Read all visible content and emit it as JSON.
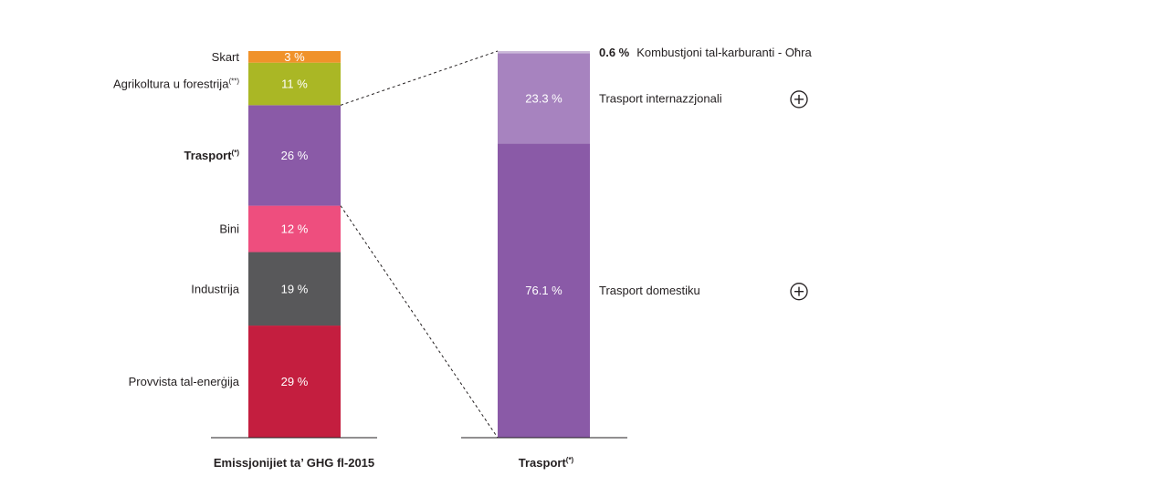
{
  "chart_data": [
    {
      "type": "bar",
      "stacked": true,
      "xlabel": "Emissjonijiet ta’ GHG fl-2015",
      "segments": [
        {
          "name": "Provvista tal-enerġija",
          "value": 29,
          "value_label": "29 %",
          "color": "#c41e3f"
        },
        {
          "name": "Industrija",
          "value": 19,
          "value_label": "19 %",
          "color": "#58585a"
        },
        {
          "name": "Bini",
          "value": 12,
          "value_label": "12 %",
          "color": "#ee4e7e"
        },
        {
          "name": "Trasport",
          "superscript": "(*)",
          "value": 26,
          "value_label": "26 %",
          "color": "#8a5aa7",
          "bold": true
        },
        {
          "name": "Agrikoltura u forestrija",
          "superscript": "(**)",
          "value": 11,
          "value_label": "11 %",
          "color": "#aab725"
        },
        {
          "name": "Skart",
          "value": 3,
          "value_label": "3 %",
          "color": "#f0922a"
        }
      ]
    },
    {
      "type": "bar",
      "stacked": true,
      "xlabel": "Trasport",
      "xlabel_superscript": "(*)",
      "segments": [
        {
          "name": "Trasport domestiku",
          "value": 76.1,
          "value_label": "76.1 %",
          "color": "#8a5aa7",
          "expand_icon": true
        },
        {
          "name": "Trasport internazzjonali",
          "value": 23.3,
          "value_label": "23.3 %",
          "color": "#a783bf",
          "expand_icon": true
        },
        {
          "name": "Kombustjoni tal-karburanti - Oħra",
          "value": 0.6,
          "value_label": "0.6 %",
          "color": "#cbb8d9",
          "outside_value": true
        }
      ]
    }
  ],
  "icons": {
    "expand": "plus-circle-icon"
  }
}
